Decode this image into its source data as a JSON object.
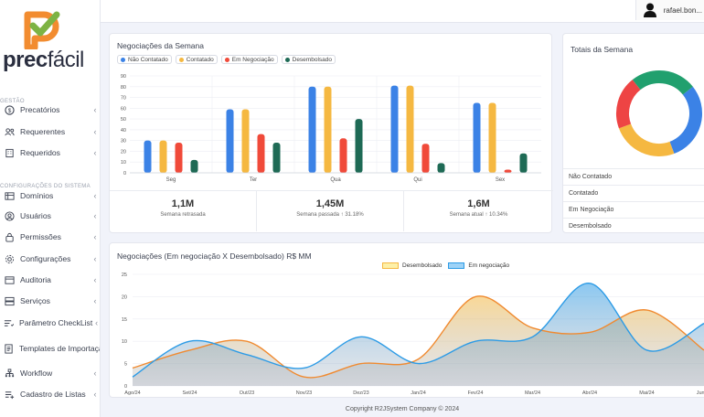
{
  "app": {
    "logo_bold": "prec",
    "logo_light": "fácil",
    "user_name": "rafael.bon..."
  },
  "sidebar": {
    "section_gestao": "GESTÃO",
    "section_config": "CONFIGURAÇÕES DO SISTEMA",
    "items": [
      {
        "label": "Precatórios",
        "icon": "dollar-circle-icon"
      },
      {
        "label": "Requerentes",
        "icon": "users-icon"
      },
      {
        "label": "Requeridos",
        "icon": "building-icon"
      },
      {
        "label": "Domínios",
        "icon": "list-icon"
      },
      {
        "label": "Usuários",
        "icon": "user-circle-icon"
      },
      {
        "label": "Permissões",
        "icon": "lock-icon"
      },
      {
        "label": "Configurações",
        "icon": "gear-icon"
      },
      {
        "label": "Auditoria",
        "icon": "folder-icon"
      },
      {
        "label": "Serviços",
        "icon": "server-icon"
      },
      {
        "label": "Parâmetro CheckList",
        "icon": "checklist-icon"
      },
      {
        "label": "Templates de Importação",
        "icon": "template-icon"
      },
      {
        "label": "Workflow",
        "icon": "workflow-icon"
      },
      {
        "label": "Cadastro de Listas",
        "icon": "list-add-icon"
      }
    ]
  },
  "weekly": {
    "title": "Negociações da Semana",
    "stats": [
      {
        "value": "1,1M",
        "label": "Semana retrasada"
      },
      {
        "value": "1,45M",
        "label": "Semana passada ↑ 31.18%"
      },
      {
        "value": "1,6M",
        "label": "Semana atual ↑ 10.34%"
      }
    ]
  },
  "totals": {
    "title": "Totais da Semana",
    "rows": [
      "Não Contatado",
      "Contatado",
      "Em Negociação",
      "Desembolsado"
    ],
    "donut_colors": [
      "#3b82e6",
      "#f5b841",
      "#ee4444",
      "#21a06e"
    ],
    "donut_values": [
      30,
      25,
      20,
      25
    ]
  },
  "colors": {
    "nao_contatado": "#3b82e6",
    "contatado": "#f5b841",
    "em_negociacao": "#f04a3a",
    "desembolsado": "#1e6a55"
  },
  "chart_data": [
    {
      "type": "bar",
      "title": "Negociações da Semana",
      "categories": [
        "Seg",
        "Ter",
        "Qua",
        "Qui",
        "Sex"
      ],
      "ylim": [
        0,
        90
      ],
      "yticks": [
        0,
        10,
        20,
        30,
        40,
        50,
        60,
        70,
        80,
        90
      ],
      "series": [
        {
          "name": "Não Contatado",
          "values": [
            30,
            59,
            80,
            81,
            65
          ]
        },
        {
          "name": "Contatado",
          "values": [
            30,
            59,
            80,
            81,
            65
          ]
        },
        {
          "name": "Em Negociação",
          "values": [
            28,
            36,
            32,
            27,
            3
          ]
        },
        {
          "name": "Desembolsado",
          "values": [
            12,
            28,
            50,
            9,
            18
          ]
        }
      ],
      "legend": "top-left"
    },
    {
      "type": "area",
      "title": "Negociações (Em negociação X Desembolsado) R$ MM",
      "x": [
        "Ago/24",
        "Set/24",
        "Out/23",
        "Nov/23",
        "Dez/23",
        "Jan/24",
        "Fev/24",
        "Mar/24",
        "Abr/24",
        "Mai/24",
        "Jun/24"
      ],
      "ylim": [
        0,
        25
      ],
      "yticks": [
        0,
        5,
        10,
        15,
        20,
        25
      ],
      "series": [
        {
          "name": "Desembolsado",
          "color": "#f5b841",
          "values": [
            4,
            8,
            10,
            2,
            5,
            6,
            20,
            13,
            12,
            17,
            8
          ]
        },
        {
          "name": "Em negociação",
          "color": "#2c9be6",
          "values": [
            2,
            10,
            7,
            4,
            11,
            5,
            10,
            11,
            23,
            8,
            14
          ]
        }
      ],
      "legend": "top-center"
    }
  ],
  "footer": "Copyright R2JSystem Company © 2024"
}
